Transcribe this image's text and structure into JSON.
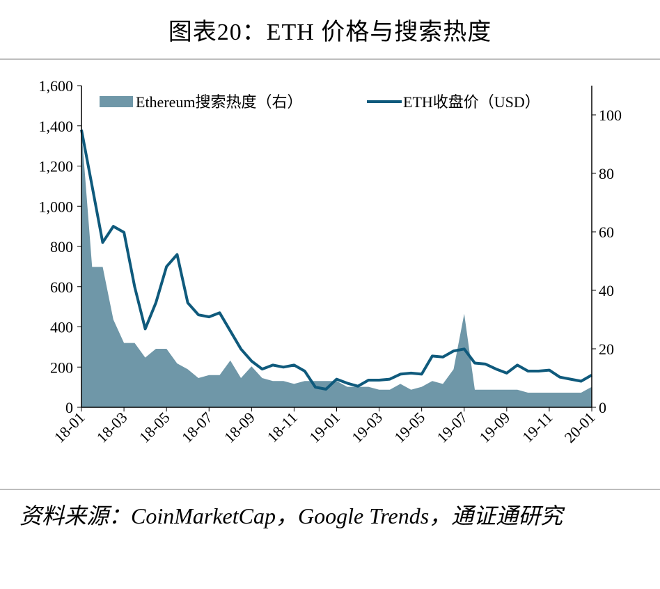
{
  "chart_data": {
    "type": "combo",
    "title": "图表20：ETH 价格与搜索热度",
    "source": "资料来源：CoinMarketCap，Google Trends，通证通研究",
    "categories": [
      "18-01",
      null,
      null,
      null,
      "18-03",
      null,
      null,
      null,
      "18-05",
      null,
      null,
      null,
      "18-07",
      null,
      null,
      null,
      "18-09",
      null,
      null,
      null,
      "18-11",
      null,
      null,
      null,
      "19-01",
      null,
      null,
      null,
      "19-03",
      null,
      null,
      null,
      "19-05",
      null,
      null,
      null,
      "19-07",
      null,
      null,
      null,
      "19-09",
      null,
      null,
      null,
      "19-11",
      null,
      null,
      null,
      "20-01"
    ],
    "series": [
      {
        "name": "Ethereum搜索热度（右）",
        "type": "area",
        "axis": "y2",
        "color": "#6f97a8",
        "values": [
          95,
          48,
          48,
          30,
          22,
          22,
          17,
          20,
          20,
          15,
          13,
          10,
          11,
          11,
          16,
          10,
          14,
          10,
          9,
          9,
          8,
          9,
          9,
          9,
          9,
          7,
          7,
          7,
          6,
          6,
          8,
          6,
          7,
          9,
          8,
          13,
          32,
          6,
          6,
          6,
          6,
          6,
          5,
          5,
          5,
          5,
          5,
          5,
          7
        ]
      },
      {
        "name": "ETH收盘价（USD）",
        "type": "line",
        "axis": "y",
        "color": "#0f5a7c",
        "values": [
          1380,
          1100,
          820,
          900,
          870,
          600,
          390,
          520,
          700,
          760,
          520,
          460,
          450,
          470,
          380,
          290,
          230,
          190,
          210,
          200,
          210,
          180,
          100,
          90,
          140,
          120,
          105,
          135,
          135,
          140,
          165,
          170,
          165,
          255,
          250,
          280,
          290,
          220,
          215,
          190,
          170,
          210,
          180,
          180,
          185,
          150,
          140,
          130,
          160
        ]
      }
    ],
    "ylim": [
      0,
      1600
    ],
    "yticks": [
      0,
      200,
      400,
      600,
      800,
      {
        "value": 1000,
        "label": "1,000"
      },
      {
        "value": 1200,
        "label": "1,200"
      },
      {
        "value": 1400,
        "label": "1,400"
      },
      {
        "value": 1600,
        "label": "1,600"
      }
    ],
    "y2lim": [
      0,
      110
    ],
    "y2ticks": [
      0,
      20,
      40,
      60,
      80,
      100
    ],
    "legend": "top",
    "grid": false
  }
}
